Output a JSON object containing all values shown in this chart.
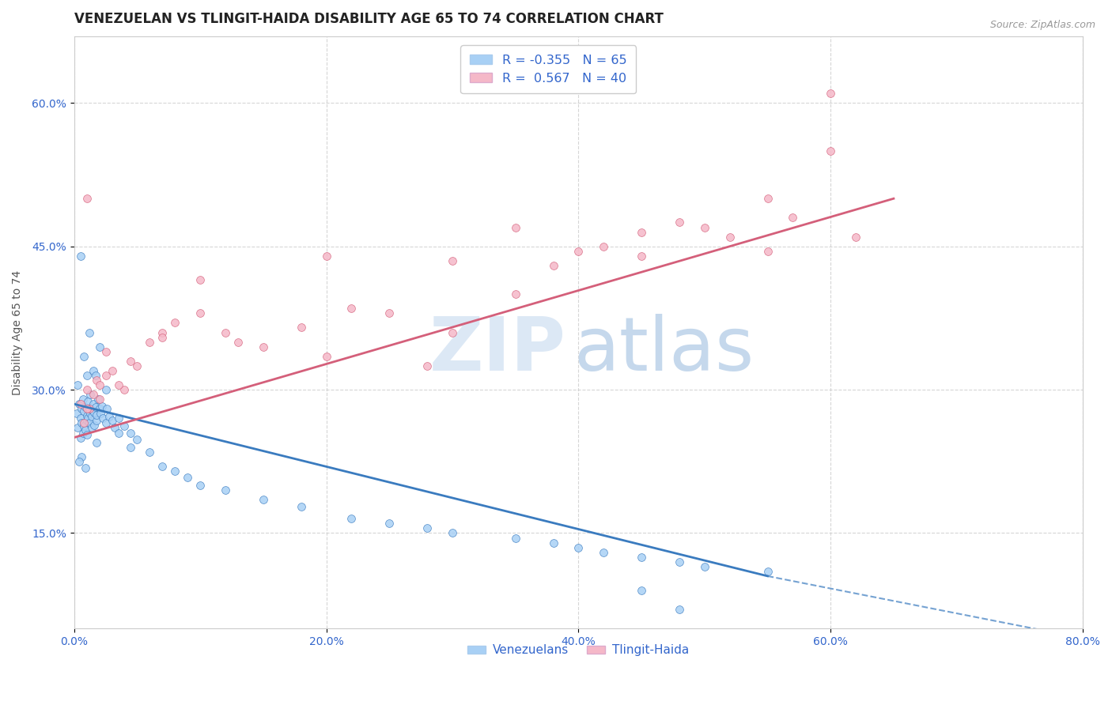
{
  "title": "VENEZUELAN VS TLINGIT-HAIDA DISABILITY AGE 65 TO 74 CORRELATION CHART",
  "source": "Source: ZipAtlas.com",
  "xlabel_vals": [
    0.0,
    20.0,
    40.0,
    60.0,
    80.0
  ],
  "ylabel": "Disability Age 65 to 74",
  "ylabel_vals": [
    15.0,
    30.0,
    45.0,
    60.0
  ],
  "xlim": [
    0.0,
    80.0
  ],
  "ylim": [
    5.0,
    67.0
  ],
  "blue_R": -0.355,
  "blue_N": 65,
  "pink_R": 0.567,
  "pink_N": 40,
  "blue_color": "#a8d0f5",
  "pink_color": "#f5b8c8",
  "blue_line_color": "#3a7bbf",
  "pink_line_color": "#d45f7a",
  "legend_label_blue": "Venezuelans",
  "legend_label_pink": "Tlingit-Haida",
  "blue_scatter_x": [
    0.2,
    0.3,
    0.4,
    0.5,
    0.5,
    0.6,
    0.6,
    0.7,
    0.7,
    0.8,
    0.8,
    0.9,
    0.9,
    1.0,
    1.0,
    1.0,
    1.1,
    1.1,
    1.2,
    1.2,
    1.3,
    1.3,
    1.4,
    1.4,
    1.5,
    1.5,
    1.6,
    1.6,
    1.7,
    1.8,
    1.8,
    1.9,
    2.0,
    2.1,
    2.2,
    2.3,
    2.5,
    2.6,
    2.8,
    3.0,
    3.2,
    3.5,
    4.0,
    4.5,
    5.0,
    6.0,
    7.0,
    8.0,
    9.0,
    10.0,
    12.0,
    15.0,
    18.0,
    22.0,
    25.0,
    28.0,
    30.0,
    35.0,
    38.0,
    40.0,
    42.0,
    45.0,
    48.0,
    50.0,
    55.0
  ],
  "blue_scatter_y": [
    27.5,
    26.0,
    28.5,
    25.0,
    27.0,
    28.0,
    26.5,
    29.0,
    25.5,
    27.8,
    26.2,
    28.2,
    25.8,
    27.3,
    26.8,
    25.3,
    28.8,
    27.0,
    26.5,
    28.0,
    27.5,
    29.5,
    27.2,
    26.0,
    27.8,
    28.5,
    26.3,
    27.6,
    28.2,
    26.8,
    27.4,
    29.0,
    28.0,
    27.5,
    28.3,
    27.0,
    26.5,
    28.0,
    27.2,
    26.8,
    26.0,
    27.0,
    26.2,
    25.5,
    24.8,
    23.5,
    22.0,
    21.5,
    20.8,
    20.0,
    19.5,
    18.5,
    17.8,
    16.5,
    16.0,
    15.5,
    15.0,
    14.5,
    14.0,
    13.5,
    13.0,
    12.5,
    12.0,
    11.5,
    11.0
  ],
  "blue_extra_x": [
    0.5,
    1.2,
    2.0,
    1.5,
    0.8,
    1.0,
    0.3,
    2.5,
    3.5,
    4.5,
    0.6,
    1.8,
    0.4,
    1.7,
    0.9,
    45.0,
    48.0
  ],
  "blue_extra_y": [
    44.0,
    36.0,
    34.5,
    32.0,
    33.5,
    31.5,
    30.5,
    30.0,
    25.5,
    24.0,
    23.0,
    24.5,
    22.5,
    31.5,
    21.8,
    9.0,
    7.0
  ],
  "pink_scatter_x": [
    0.5,
    0.8,
    1.0,
    1.2,
    1.5,
    1.8,
    2.0,
    2.5,
    3.0,
    4.0,
    5.0,
    6.0,
    7.0,
    8.0,
    10.0,
    12.0,
    13.0,
    15.0,
    18.0,
    20.0,
    22.0,
    25.0,
    28.0,
    30.0,
    35.0,
    38.0,
    40.0,
    42.0,
    45.0,
    48.0,
    50.0,
    52.0,
    55.0,
    57.0,
    60.0,
    62.0,
    1.0,
    2.0,
    3.5,
    7.0
  ],
  "pink_scatter_y": [
    28.5,
    26.5,
    30.0,
    28.0,
    29.5,
    31.0,
    30.5,
    31.5,
    32.0,
    30.0,
    32.5,
    35.0,
    36.0,
    37.0,
    38.0,
    36.0,
    35.0,
    34.5,
    36.5,
    33.5,
    38.5,
    38.0,
    32.5,
    36.0,
    40.0,
    43.0,
    44.5,
    45.0,
    46.5,
    47.5,
    47.0,
    46.0,
    50.0,
    48.0,
    55.0,
    46.0,
    28.0,
    29.0,
    30.5,
    35.5
  ],
  "pink_extra_x": [
    1.0,
    2.5,
    4.5,
    10.0,
    20.0,
    30.0,
    60.0,
    35.0,
    45.0,
    55.0
  ],
  "pink_extra_y": [
    50.0,
    34.0,
    33.0,
    41.5,
    44.0,
    43.5,
    61.0,
    47.0,
    44.0,
    44.5
  ],
  "title_fontsize": 12,
  "axis_label_fontsize": 10,
  "tick_fontsize": 10,
  "source_fontsize": 9
}
